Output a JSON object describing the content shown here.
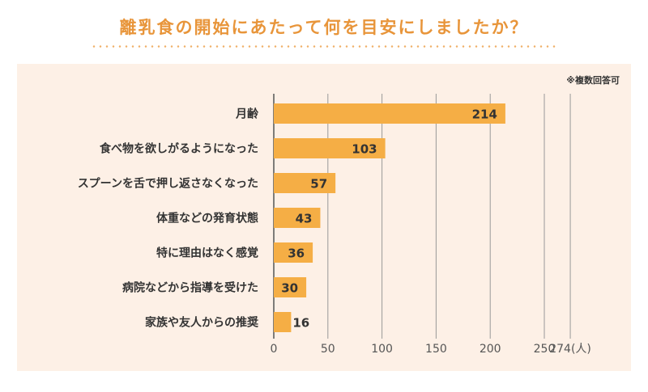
{
  "title": "離乳食の開始にあたって何を目安にしましたか？",
  "note": "※複数回答可",
  "colors": {
    "bar": "#f5ae45",
    "title": "#e8953a",
    "panel": "#fdf0e6",
    "grid": "#999999",
    "text": "#333333"
  },
  "chart_data": {
    "type": "bar",
    "orientation": "horizontal",
    "categories": [
      "月齢",
      "食べ物を欲しがるようになった",
      "スプーンを舌で押し返さなくなった",
      "体重などの発育状態",
      "特に理由はなく感覚",
      "病院などから指導を受けた",
      "家族や友人からの推奨"
    ],
    "values": [
      214,
      103,
      57,
      43,
      36,
      30,
      16
    ],
    "xlim": [
      0,
      274
    ],
    "xticks": [
      0,
      50,
      100,
      150,
      200,
      250,
      274
    ],
    "xtick_labels": [
      "0",
      "50",
      "100",
      "150",
      "200",
      "250",
      "274(人)"
    ],
    "grid": true
  }
}
